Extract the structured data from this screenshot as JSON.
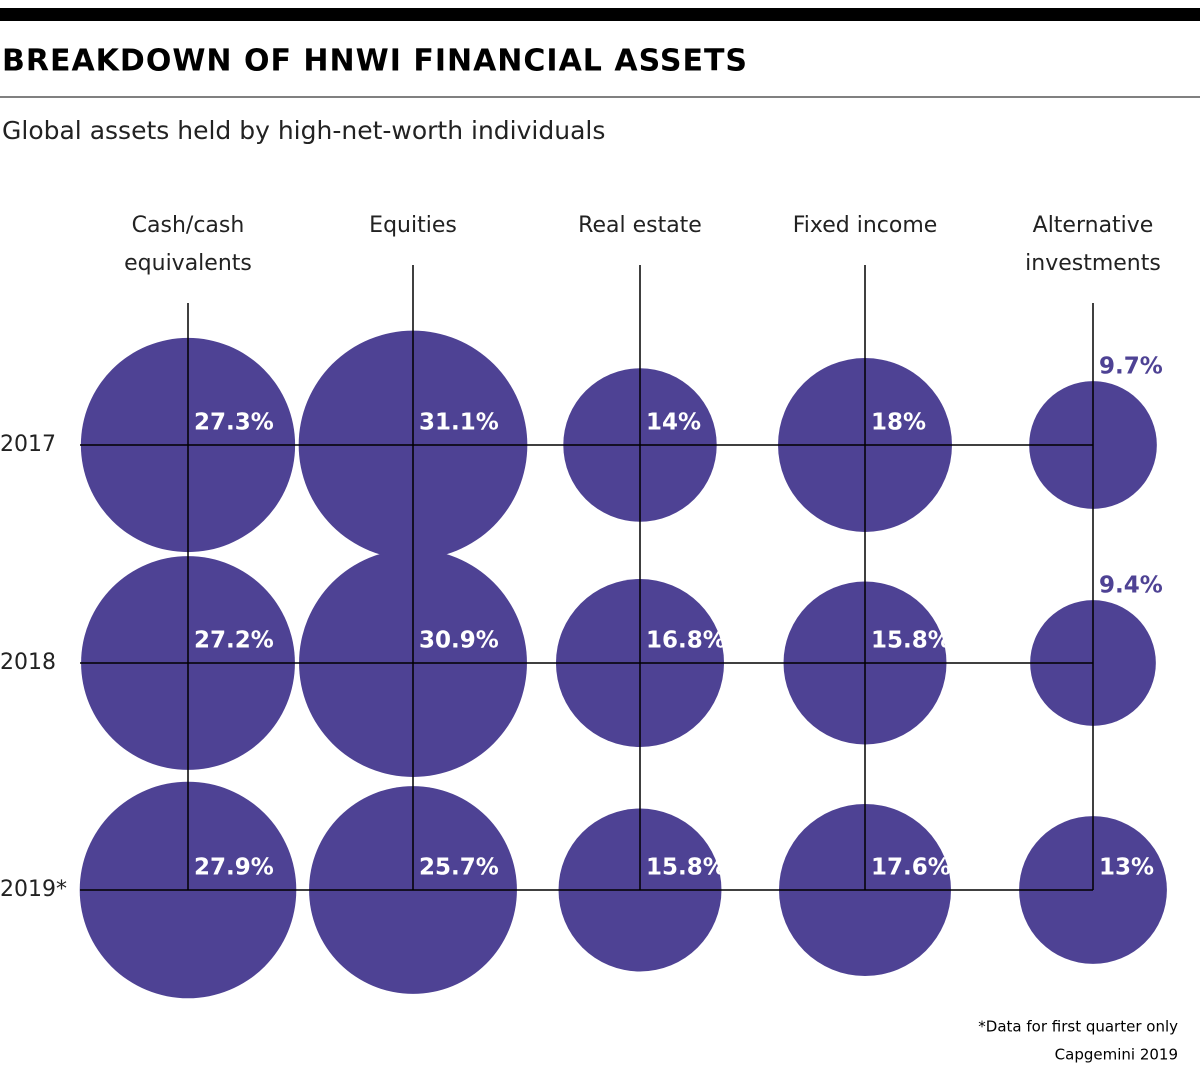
{
  "chart_data": {
    "type": "bubble",
    "title": "BREAKDOWN OF HNWI FINANCIAL ASSETS",
    "subtitle": "Global assets held by high-net-worth individuals",
    "categories": [
      "Cash/cash\nequivalents",
      "Equities",
      "Real estate",
      "Fixed income",
      "Alternative\ninvestments"
    ],
    "color": "#4e4294",
    "outside_label_color": "#4e4294",
    "series": [
      {
        "name": "2017",
        "values": [
          27.3,
          31.1,
          14,
          18,
          9.7
        ],
        "value_labels": [
          "27.3%",
          "31.1%",
          "14%",
          "18%",
          "9.7%"
        ]
      },
      {
        "name": "2018",
        "values": [
          27.2,
          30.9,
          16.8,
          15.8,
          9.4
        ],
        "value_labels": [
          "27.2%",
          "30.9%",
          "16.8%",
          "15.8%",
          "9.4%"
        ]
      },
      {
        "name": "2019*",
        "values": [
          27.9,
          25.7,
          15.8,
          17.6,
          13
        ],
        "value_labels": [
          "27.9%",
          "25.7%",
          "15.8%",
          "17.6%",
          "13%"
        ]
      }
    ],
    "note": "*Data for first quarter only",
    "source": "Capgemini 2019"
  }
}
